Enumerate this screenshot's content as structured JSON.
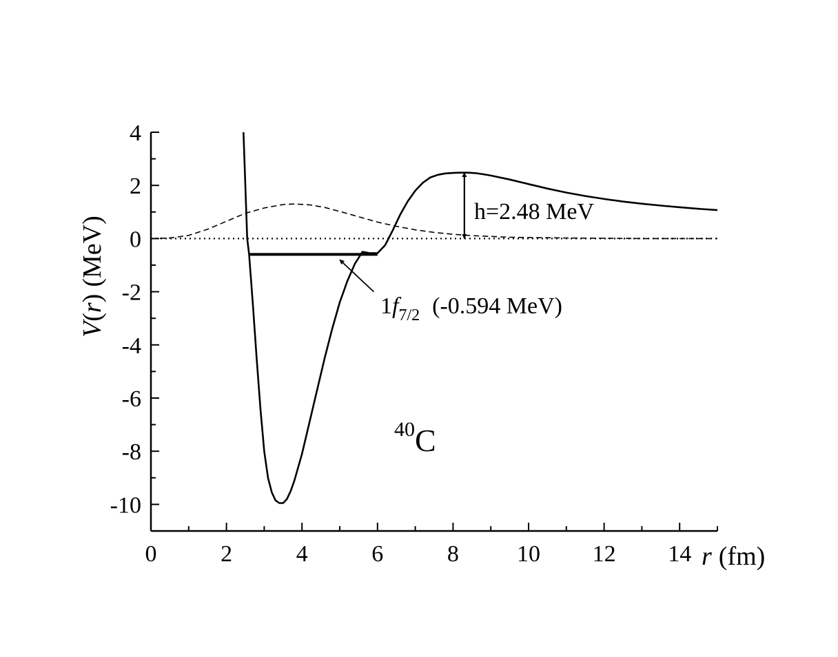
{
  "chart_data": {
    "type": "line",
    "xlabel": {
      "var": "r",
      "unit": "(fm)"
    },
    "ylabel": {
      "var_v": "V",
      "paren_open": "(",
      "var_r": "r",
      "paren_close": ")",
      "unit": "(MeV)"
    },
    "xlim": [
      0,
      15
    ],
    "ylim": [
      -11,
      4
    ],
    "x_ticks": [
      0,
      2,
      4,
      6,
      8,
      10,
      12,
      14
    ],
    "x_tick_labels": [
      "0",
      "2",
      "4",
      "6",
      "8",
      "10",
      "12",
      "14"
    ],
    "y_ticks": [
      -10,
      -8,
      -6,
      -4,
      -2,
      0,
      2,
      4
    ],
    "y_tick_labels": [
      "-10",
      "-8",
      "-6",
      "-4",
      "-2",
      "0",
      "2",
      "4"
    ],
    "grid": false,
    "series": [
      {
        "style": "solid",
        "x": [
          2.45,
          2.5,
          2.55,
          2.6,
          2.7,
          2.8,
          2.9,
          3.0,
          3.1,
          3.2,
          3.3,
          3.4,
          3.5,
          3.6,
          3.7,
          3.8,
          4.0,
          4.2,
          4.4,
          4.6,
          4.8,
          5.0,
          5.2,
          5.4,
          5.6,
          5.8,
          6.0,
          6.2,
          6.4,
          6.6,
          6.8,
          7.0,
          7.2,
          7.4,
          7.6,
          7.8,
          8.0,
          8.2,
          8.4,
          8.6,
          8.8,
          9.0,
          9.5,
          10.0,
          10.5,
          11.0,
          11.5,
          12.0,
          12.5,
          13.0,
          13.5,
          14.0,
          14.5,
          15.0
        ],
        "y": [
          4.0,
          2.0,
          0.0,
          -0.6,
          -2.5,
          -4.5,
          -6.4,
          -8.0,
          -9.0,
          -9.55,
          -9.85,
          -9.95,
          -9.95,
          -9.8,
          -9.5,
          -9.1,
          -8.1,
          -6.9,
          -5.7,
          -4.5,
          -3.4,
          -2.4,
          -1.6,
          -0.95,
          -0.5,
          -0.55,
          -0.55,
          -0.25,
          0.3,
          0.9,
          1.4,
          1.8,
          2.1,
          2.3,
          2.4,
          2.45,
          2.47,
          2.48,
          2.48,
          2.46,
          2.42,
          2.37,
          2.22,
          2.05,
          1.88,
          1.73,
          1.6,
          1.49,
          1.39,
          1.31,
          1.24,
          1.18,
          1.12,
          1.07
        ]
      },
      {
        "style": "dashed",
        "x": [
          0,
          0.5,
          1.0,
          1.5,
          2.0,
          2.5,
          3.0,
          3.5,
          3.8,
          4.2,
          4.6,
          5.0,
          5.5,
          6.0,
          6.5,
          7.0,
          7.5,
          8.0,
          8.5,
          9.0,
          9.5,
          10.0,
          10.5,
          11.0,
          11.5,
          12.0,
          12.5,
          13.0,
          14.0,
          15.0
        ],
        "y": [
          0.0,
          0.02,
          0.12,
          0.35,
          0.65,
          0.95,
          1.15,
          1.28,
          1.3,
          1.27,
          1.17,
          1.02,
          0.82,
          0.62,
          0.46,
          0.33,
          0.23,
          0.16,
          0.11,
          0.08,
          0.05,
          0.04,
          0.03,
          0.02,
          0.015,
          0.01,
          0.005,
          0.0,
          0.0,
          0.0
        ]
      },
      {
        "style": "dotted",
        "x": [
          0,
          15
        ],
        "y": [
          0,
          0
        ]
      }
    ],
    "level": {
      "x_start": 2.62,
      "x_end": 6.0,
      "y": -0.594
    },
    "barrier_arrow": {
      "x": 8.3,
      "y_bottom": 0,
      "y_top": 2.48
    },
    "level_arrow": {
      "from_x": 5.9,
      "from_y": -2.0,
      "to_x": 5.0,
      "to_y": -0.8
    },
    "annotations": {
      "barrier": "h=2.48 MeV",
      "level_main": "1",
      "level_f": "f",
      "level_sub": "7/2",
      "level_energy": "(-0.594 MeV)",
      "nucleus_mass": "40",
      "nucleus_symbol": "C"
    }
  }
}
